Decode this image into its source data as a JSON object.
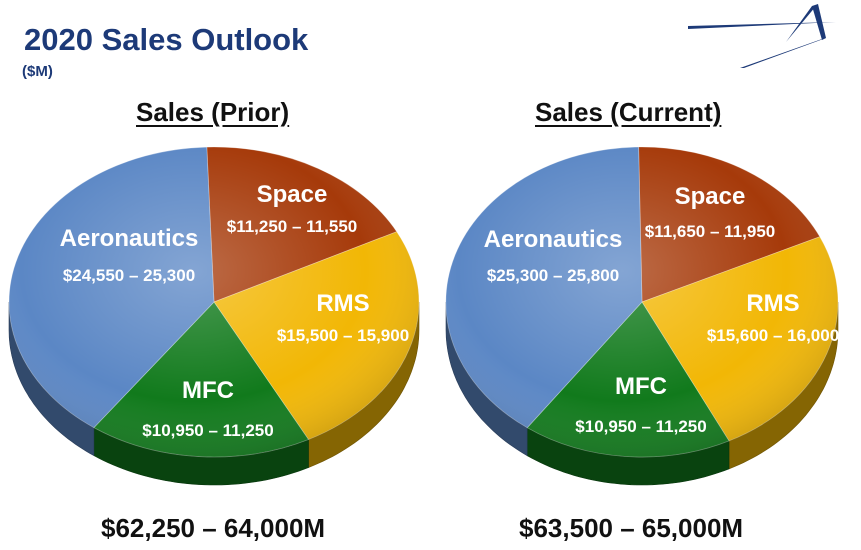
{
  "header": {
    "title": "2020 Sales Outlook",
    "subtitle": "($M)",
    "logo_icon": "star-logo-icon"
  },
  "colors": {
    "Aeronautics": "#5b87c5",
    "Space": "#a63a0a",
    "RMS": "#f2b705",
    "MFC": "#117a1c"
  },
  "chart_data": [
    {
      "type": "pie",
      "title": "Sales (Prior)",
      "total_label": "$62,250 – 64,000M",
      "slices": [
        {
          "name": "Space",
          "value_label": "$11,250 – 11,550",
          "low": 11250,
          "high": 11550
        },
        {
          "name": "RMS",
          "value_label": "$15,500 – 15,900",
          "low": 15500,
          "high": 15900
        },
        {
          "name": "MFC",
          "value_label": "$10,950 – 11,250",
          "low": 10950,
          "high": 11250
        },
        {
          "name": "Aeronautics",
          "value_label": "$24,550 – 25,300",
          "low": 24550,
          "high": 25300
        }
      ]
    },
    {
      "type": "pie",
      "title": "Sales (Current)",
      "total_label": "$63,500 – 65,000M",
      "slices": [
        {
          "name": "Space",
          "value_label": "$11,650 – 11,950",
          "low": 11650,
          "high": 11950
        },
        {
          "name": "RMS",
          "value_label": "$15,600 – 16,000",
          "low": 15600,
          "high": 16000
        },
        {
          "name": "MFC",
          "value_label": "$10,950 – 11,250",
          "low": 10950,
          "high": 11250
        },
        {
          "name": "Aeronautics",
          "value_label": "$25,300 – 25,800",
          "low": 25300,
          "high": 25800
        }
      ]
    }
  ]
}
